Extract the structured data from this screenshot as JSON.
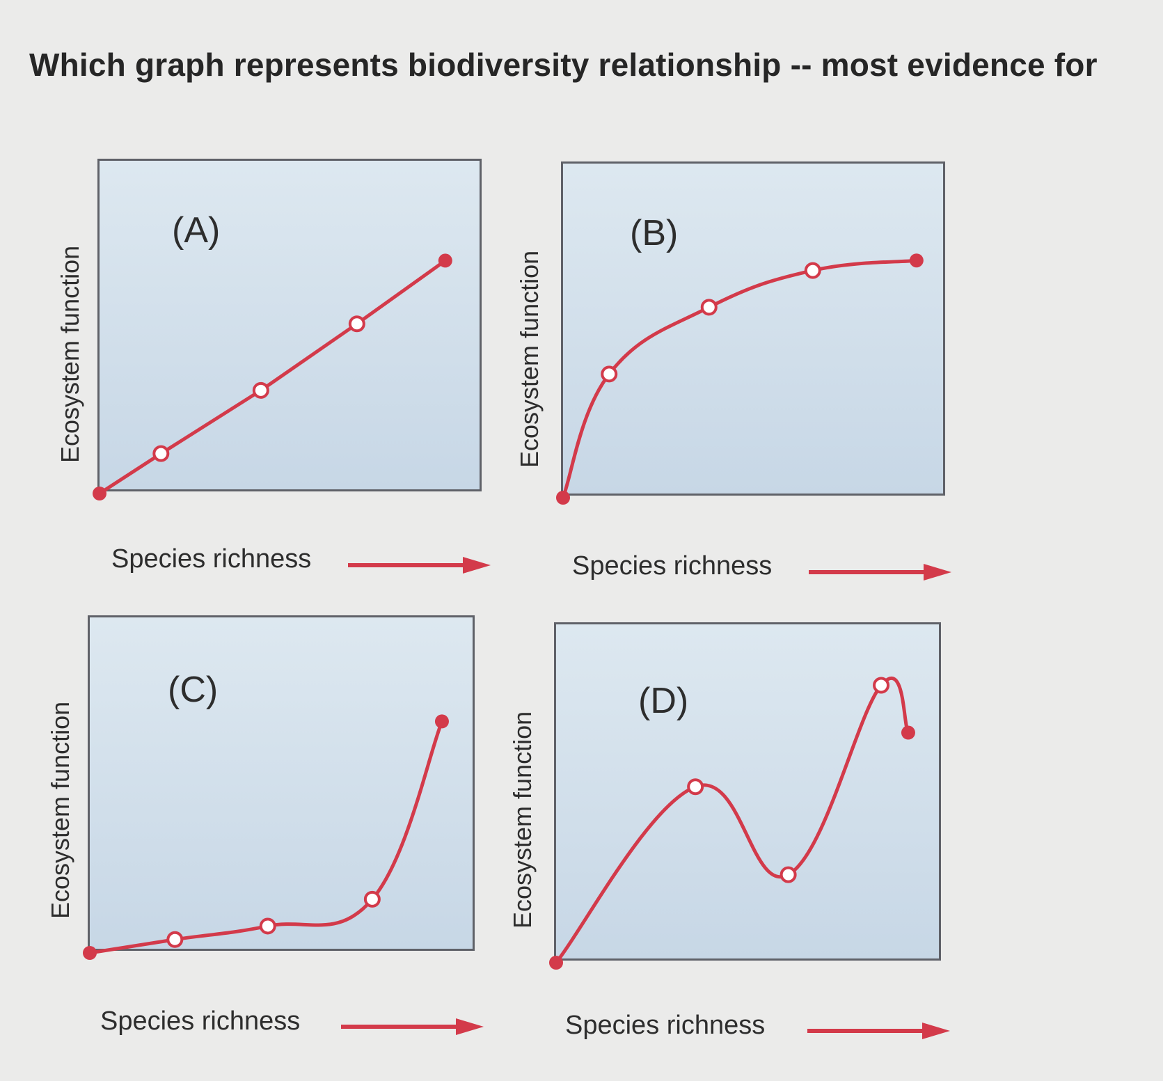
{
  "question": "Which graph represents biodiversity relationship -- most evidence for",
  "colors": {
    "curve": "#d33a4a",
    "frame": "#5f6168"
  },
  "chart_data": [
    {
      "type": "line",
      "panel_label": "(A)",
      "xlabel": "Species richness",
      "ylabel": "Ecosystem function",
      "x": [
        0,
        0.16,
        0.42,
        0.67,
        0.9
      ],
      "y": [
        0,
        0.12,
        0.31,
        0.51,
        0.7
      ],
      "filled_last_point": true
    },
    {
      "type": "line",
      "panel_label": "(B)",
      "xlabel": "Species richness",
      "ylabel": "Ecosystem function",
      "x": [
        0,
        0.12,
        0.38,
        0.65,
        0.92
      ],
      "y": [
        0,
        0.37,
        0.57,
        0.68,
        0.71
      ],
      "filled_last_point": true
    },
    {
      "type": "line",
      "panel_label": "(C)",
      "xlabel": "Species richness",
      "ylabel": "Ecosystem function",
      "x": [
        0,
        0.22,
        0.46,
        0.73,
        0.91
      ],
      "y": [
        0,
        0.04,
        0.08,
        0.16,
        0.69
      ],
      "filled_last_point": true
    },
    {
      "type": "line",
      "panel_label": "(D)",
      "xlabel": "Species richness",
      "ylabel": "Ecosystem function",
      "x": [
        0,
        0.36,
        0.6,
        0.84,
        0.91
      ],
      "y": [
        0,
        0.52,
        0.26,
        0.82,
        0.68
      ],
      "filled_last_point": true
    }
  ]
}
